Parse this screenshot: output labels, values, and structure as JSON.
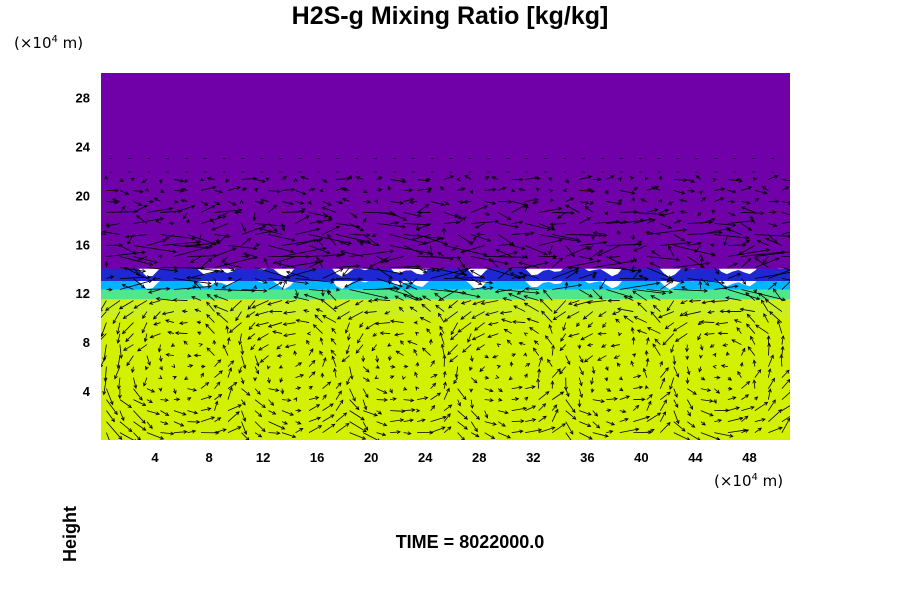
{
  "chart_data": {
    "type": "heatmap",
    "title": "H2S-g Mixing Ratio [kg/kg]",
    "ylabel": "Height",
    "xlabel": "",
    "x_unit_prefix": "(×10",
    "x_unit_exp": "4",
    "x_unit_suffix": " m)",
    "y_unit_prefix": "(×10",
    "y_unit_exp": "4",
    "y_unit_suffix": " m)",
    "xlim": [
      0,
      51
    ],
    "ylim": [
      0,
      30
    ],
    "x_ticks": [
      "4",
      "8",
      "12",
      "16",
      "20",
      "24",
      "28",
      "32",
      "36",
      "40",
      "44",
      "48"
    ],
    "x_tick_values": [
      4,
      8,
      12,
      16,
      20,
      24,
      28,
      32,
      36,
      40,
      44,
      48
    ],
    "y_ticks": [
      "4",
      "8",
      "12",
      "16",
      "20",
      "24",
      "28"
    ],
    "y_tick_values": [
      4,
      8,
      12,
      16,
      20,
      24,
      28
    ],
    "layers": [
      {
        "y_from": 0,
        "y_to": 11.5,
        "color": "#d2f000"
      },
      {
        "y_from": 11.5,
        "y_to": 12.3,
        "color": "#50e68c"
      },
      {
        "y_from": 12.3,
        "y_to": 13.0,
        "color": "#00b4ff"
      },
      {
        "y_from": 13.0,
        "y_to": 14.0,
        "color": "#1e28d2"
      },
      {
        "y_from": 14.0,
        "y_to": 30,
        "color": "#7000a8"
      }
    ],
    "interface_height": 12.6,
    "vector_field": {
      "color": "#000000",
      "regions": [
        {
          "name": "upper",
          "y_from": 12,
          "y_to": 21.5
        },
        {
          "name": "lower",
          "y_from": 0.5,
          "y_to": 12
        },
        {
          "name": "top_calm",
          "y_from": 21.5,
          "y_to": 30
        }
      ],
      "cell_centers_x": [
        6,
        14,
        22,
        30,
        38,
        46
      ]
    }
  },
  "footer": {
    "label": "TIME = 8022000.0"
  }
}
